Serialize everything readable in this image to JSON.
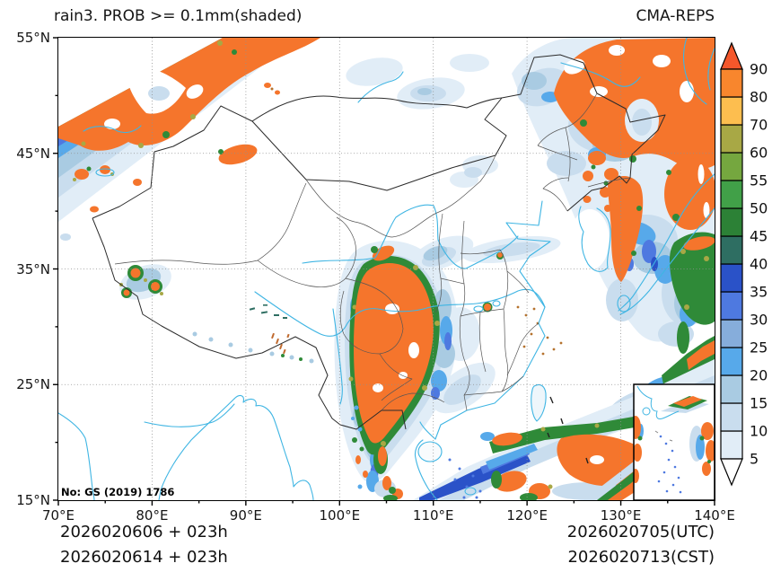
{
  "title": "rain3. PROB >= 0.1mm(shaded)",
  "model": "CMA-REPS",
  "license_note": "No: GS (2019) 1786",
  "axes": {
    "x_ticks": [
      "70°E",
      "80°E",
      "90°E",
      "100°E",
      "110°E",
      "120°E",
      "130°E",
      "140°E"
    ],
    "y_ticks": [
      "55°N",
      "45°N",
      "35°N",
      "25°N",
      "15°N"
    ]
  },
  "colorbar": {
    "levels": [
      5,
      10,
      15,
      20,
      25,
      30,
      35,
      40,
      45,
      50,
      55,
      60,
      70,
      80,
      90
    ],
    "colors_bottom_to_top": [
      "#e1edf7",
      "#c9ddee",
      "#a9cbe2",
      "#57a9ea",
      "#86addb",
      "#4e79e0",
      "#2a52c8",
      "#2e6e62",
      "#2c8136",
      "#41a048",
      "#75a73f",
      "#a8a845",
      "#fdbe4f",
      "#f8862d"
    ],
    "over_color": "#f4572b",
    "under_color": "#ffffff"
  },
  "map_colors": {
    "coast_river": "#3fb5e3",
    "borders": "#2b2b2b",
    "grid": "#909090"
  },
  "footer": {
    "left_line1": "2026020606 + 023h",
    "left_line2": "2026020614 + 023h",
    "right_line1": "2026020705(UTC)",
    "right_line2": "2026020713(CST)"
  }
}
